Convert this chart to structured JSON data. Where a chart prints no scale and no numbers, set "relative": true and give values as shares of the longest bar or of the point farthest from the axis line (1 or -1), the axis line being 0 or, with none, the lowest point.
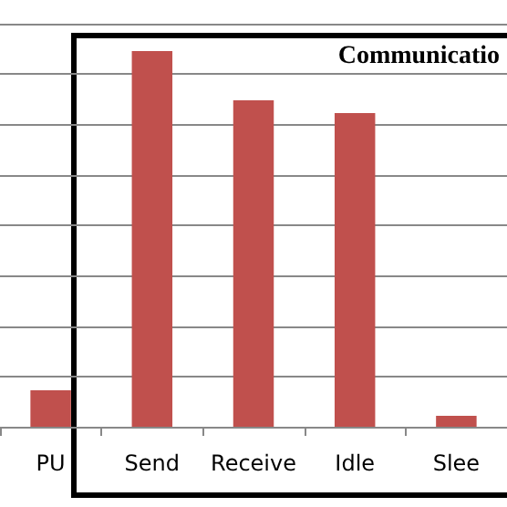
{
  "chart_data": {
    "type": "bar",
    "relative": true,
    "categories": [
      "PU",
      "Send",
      "Receive",
      "Idle",
      "Slee"
    ],
    "values": [
      0.097,
      1,
      0.869,
      0.835,
      0.029
    ],
    "color": "#c0504d",
    "grid": "y",
    "annotations": [
      "Communicatio"
    ]
  }
}
